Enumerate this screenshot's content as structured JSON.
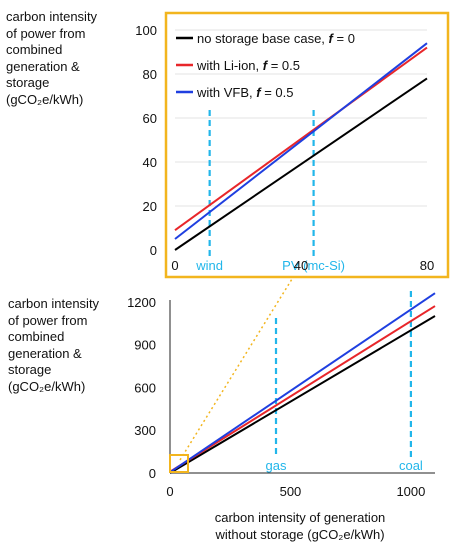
{
  "top_ylabel": [
    "carbon intensity",
    "of power from",
    "combined",
    "generation &",
    "storage"
  ],
  "top_ylabel_unit": "(gCO₂e/kWh)",
  "bottom_ylabel": [
    "carbon intensity",
    "of power from",
    "combined",
    "generation &",
    "storage"
  ],
  "bottom_ylabel_unit": "(gCO₂e/kWh)",
  "xlabel": [
    "carbon intensity of generation",
    "without storage (gCO₂e/kWh)"
  ],
  "colors": {
    "black": "#000000",
    "red": "#e8262a",
    "blue": "#1f3fe0",
    "cyan": "#22b6ea",
    "gold": "#f2b51e"
  },
  "chart_data": [
    {
      "type": "line",
      "panel": "inset",
      "xlim": [
        0,
        80
      ],
      "ylim": [
        0,
        100
      ],
      "x_ticks": [
        0,
        40,
        80
      ],
      "y_ticks": [
        0,
        20,
        40,
        60,
        80,
        100
      ],
      "legend": [
        "no storage base case, f = 0",
        "with Li-ion, f = 0.5",
        "with VFB, f = 0.5"
      ],
      "series": [
        {
          "name": "no storage base case, f = 0",
          "color": "black",
          "x": [
            0,
            80
          ],
          "y": [
            0,
            78
          ]
        },
        {
          "name": "with Li-ion, f = 0.5",
          "color": "red",
          "x": [
            0,
            80
          ],
          "y": [
            9,
            92
          ]
        },
        {
          "name": "with VFB, f = 0.5",
          "color": "blue",
          "x": [
            0,
            80
          ],
          "y": [
            5,
            94
          ]
        }
      ],
      "reference_lines": [
        {
          "label": "wind",
          "x": 11
        },
        {
          "label": "PV (mc-Si)",
          "x": 44
        }
      ]
    },
    {
      "type": "line",
      "panel": "main",
      "xlim": [
        0,
        1100
      ],
      "ylim": [
        0,
        1300
      ],
      "x_ticks": [
        0,
        500,
        1000
      ],
      "y_ticks": [
        0,
        300,
        600,
        900,
        1200
      ],
      "series": [
        {
          "name": "no storage base case, f = 0",
          "color": "black",
          "x": [
            0,
            1100
          ],
          "y": [
            0,
            1100
          ]
        },
        {
          "name": "with Li-ion, f = 0.5",
          "color": "red",
          "x": [
            0,
            1100
          ],
          "y": [
            9,
            1170
          ]
        },
        {
          "name": "with VFB, f = 0.5",
          "color": "blue",
          "x": [
            0,
            1100
          ],
          "y": [
            5,
            1260
          ]
        }
      ],
      "reference_lines": [
        {
          "label": "gas",
          "x": 440
        },
        {
          "label": "coal",
          "x": 1000
        }
      ]
    }
  ]
}
